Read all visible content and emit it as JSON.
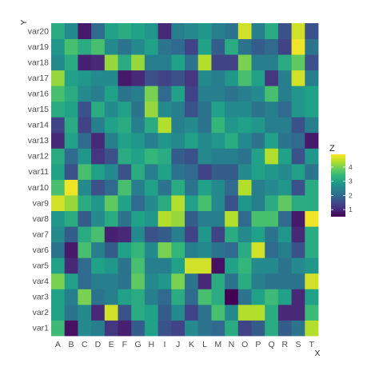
{
  "chart_data": {
    "type": "heatmap",
    "xlabel": "X",
    "ylabel": "Y",
    "x_categories": [
      "A",
      "B",
      "C",
      "D",
      "E",
      "F",
      "G",
      "H",
      "I",
      "J",
      "K",
      "L",
      "M",
      "N",
      "O",
      "P",
      "Q",
      "R",
      "S",
      "T"
    ],
    "y_categories": [
      "var1",
      "var2",
      "var3",
      "var4",
      "var5",
      "var6",
      "var7",
      "var8",
      "var9",
      "var10",
      "var11",
      "var12",
      "var13",
      "var14",
      "var15",
      "var16",
      "var17",
      "var18",
      "var19",
      "var20"
    ],
    "z_range": [
      0.5,
      4.9
    ],
    "legend": {
      "title": "Z",
      "ticks": [
        1,
        2,
        3,
        4
      ],
      "position": "right"
    },
    "colorscale": [
      "#440154",
      "#482878",
      "#3e4989",
      "#31688e",
      "#26828e",
      "#1f9e89",
      "#35b779",
      "#6ece58",
      "#b5de2b",
      "#fde725"
    ],
    "grid": false,
    "values": [
      [
        3.5,
        0.7,
        2.6,
        2.4,
        1.2,
        0.9,
        1.8,
        3.0,
        1.6,
        1.4,
        2.6,
        2.2,
        2.0,
        3.2,
        1.4,
        1.8,
        3.2,
        1.8,
        2.2,
        4.4
      ],
      [
        3.0,
        2.2,
        2.6,
        1.0,
        4.6,
        1.6,
        3.2,
        3.0,
        1.8,
        2.6,
        1.4,
        2.2,
        3.6,
        2.6,
        4.4,
        4.4,
        3.2,
        1.0,
        1.0,
        3.5
      ],
      [
        3.0,
        2.4,
        4.0,
        2.2,
        2.4,
        3.0,
        3.2,
        2.4,
        2.0,
        3.2,
        2.0,
        3.6,
        3.2,
        0.5,
        2.2,
        3.0,
        3.5,
        3.0,
        1.0,
        3.0
      ],
      [
        4.0,
        3.0,
        2.0,
        2.4,
        2.4,
        2.2,
        3.8,
        2.6,
        2.8,
        4.0,
        2.2,
        1.0,
        3.2,
        2.2,
        3.2,
        2.4,
        2.2,
        2.2,
        2.2,
        4.6
      ],
      [
        3.0,
        1.0,
        2.0,
        3.0,
        2.8,
        2.2,
        3.6,
        2.4,
        2.4,
        3.0,
        4.6,
        4.6,
        0.7,
        3.0,
        3.4,
        2.6,
        2.6,
        2.2,
        2.6,
        2.8
      ],
      [
        2.2,
        0.8,
        3.6,
        2.4,
        1.8,
        3.0,
        3.4,
        2.6,
        4.0,
        3.4,
        2.4,
        2.6,
        2.2,
        2.0,
        3.2,
        4.6,
        2.0,
        2.4,
        1.6,
        3.2
      ],
      [
        2.6,
        1.8,
        3.2,
        3.6,
        0.9,
        1.0,
        2.6,
        1.6,
        1.8,
        2.4,
        1.4,
        2.8,
        1.4,
        3.2,
        2.6,
        3.0,
        2.2,
        2.8,
        1.0,
        3.2
      ],
      [
        2.8,
        3.2,
        1.8,
        2.6,
        3.2,
        2.2,
        3.0,
        2.8,
        4.4,
        4.2,
        1.8,
        2.4,
        2.4,
        4.4,
        2.0,
        3.6,
        3.6,
        2.0,
        0.8,
        4.8
      ],
      [
        4.6,
        4.2,
        3.2,
        2.8,
        3.8,
        3.0,
        2.0,
        2.6,
        3.2,
        4.4,
        3.0,
        3.6,
        2.6,
        1.6,
        2.8,
        2.4,
        3.2,
        3.8,
        3.2,
        3.2
      ],
      [
        3.6,
        4.8,
        2.6,
        1.6,
        2.0,
        3.6,
        2.4,
        3.0,
        2.2,
        3.2,
        2.2,
        3.0,
        2.6,
        2.0,
        4.4,
        2.4,
        2.6,
        2.8,
        1.6,
        3.2
      ],
      [
        3.0,
        1.6,
        3.6,
        3.0,
        2.6,
        1.6,
        3.2,
        2.4,
        3.0,
        2.2,
        2.0,
        1.4,
        1.8,
        1.8,
        2.6,
        3.0,
        2.8,
        2.6,
        3.0,
        2.2
      ],
      [
        3.2,
        2.0,
        2.8,
        1.2,
        1.6,
        3.2,
        3.0,
        3.4,
        3.2,
        1.8,
        1.6,
        2.6,
        2.4,
        2.4,
        2.2,
        3.0,
        4.4,
        3.0,
        1.6,
        2.8
      ],
      [
        1.0,
        3.0,
        2.0,
        1.0,
        2.4,
        3.0,
        2.8,
        2.4,
        2.8,
        2.6,
        3.0,
        2.6,
        2.8,
        3.2,
        2.6,
        2.2,
        3.0,
        2.2,
        2.0,
        0.8
      ],
      [
        1.4,
        3.2,
        1.4,
        2.4,
        3.0,
        3.2,
        2.4,
        3.2,
        4.4,
        2.4,
        2.6,
        2.2,
        3.4,
        2.8,
        3.0,
        2.8,
        2.4,
        2.4,
        1.6,
        2.4
      ],
      [
        3.2,
        3.0,
        1.6,
        3.2,
        2.6,
        3.0,
        2.2,
        4.2,
        2.6,
        2.4,
        1.6,
        2.2,
        3.0,
        2.6,
        2.6,
        2.2,
        2.4,
        2.0,
        2.8,
        3.0
      ],
      [
        3.6,
        3.2,
        2.6,
        2.4,
        3.0,
        2.2,
        2.4,
        4.0,
        2.0,
        3.0,
        1.4,
        2.4,
        2.4,
        2.2,
        2.4,
        2.6,
        3.6,
        2.4,
        2.8,
        3.0
      ],
      [
        4.2,
        3.0,
        2.8,
        2.6,
        2.6,
        0.8,
        1.0,
        1.6,
        1.4,
        1.6,
        1.2,
        2.6,
        2.4,
        2.8,
        3.6,
        3.0,
        1.2,
        2.4,
        4.6,
        2.4
      ],
      [
        2.6,
        3.2,
        0.9,
        1.0,
        4.2,
        3.2,
        4.2,
        2.4,
        2.4,
        3.0,
        2.2,
        4.4,
        1.4,
        1.4,
        4.0,
        2.4,
        2.4,
        3.2,
        3.8,
        1.6
      ],
      [
        2.8,
        3.6,
        3.2,
        3.6,
        2.6,
        2.2,
        2.6,
        3.0,
        2.2,
        2.0,
        1.4,
        3.0,
        1.8,
        3.2,
        2.2,
        1.8,
        2.0,
        1.4,
        4.8,
        2.2
      ],
      [
        3.2,
        2.6,
        0.8,
        2.0,
        3.0,
        3.2,
        3.0,
        2.8,
        1.0,
        2.4,
        2.6,
        2.8,
        2.4,
        2.2,
        4.6,
        2.4,
        3.2,
        1.6,
        4.6,
        1.6
      ]
    ]
  }
}
